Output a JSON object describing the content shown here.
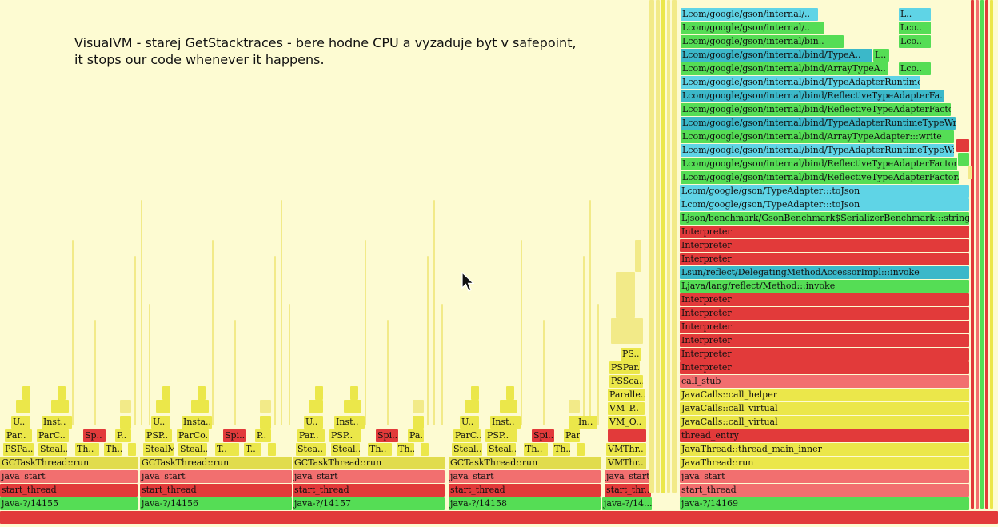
{
  "caption": {
    "line1": "VisualVM - starej GetStacktraces - bere hodne CPU a vyzaduje byt v safepoint,",
    "line2": "it stops our code whenever it happens."
  },
  "colors": {
    "background": "#fdfbd2",
    "yellow": "#ebe74a",
    "red": "#e23a3a",
    "pink": "#f26f6f",
    "green": "#55dd55",
    "cyan": "#5fd4e6",
    "teal": "#3bb8c9"
  },
  "cursor_icon": "arrow-pointer-icon",
  "threads": [
    {
      "label": "java-?/14155"
    },
    {
      "label": "java-?/14156"
    },
    {
      "label": "java-?/14157"
    },
    {
      "label": "java-?/14158"
    },
    {
      "label": "java-?/14..."
    },
    {
      "label": "java-?/14169"
    }
  ],
  "frames": {
    "gc1": [
      "GCTaskThread::run",
      "art_thread",
      "java_start",
      "java-?/14155"
    ],
    "gc_common": {
      "run": "GCTaskThread::run",
      "start": "start_thread",
      "java": "java_start"
    },
    "gc_small_1": [
      "U..",
      "Inst..",
      "Sp..",
      "P..",
      "Par..",
      "ParC..",
      "PSPa..",
      "Steal..",
      "Th.."
    ],
    "gc_small_2": [
      "U..",
      "Insta..",
      "Spi..",
      "P..",
      "PSP..",
      "ParCo..",
      "StealM..",
      "Steal..",
      "T.."
    ],
    "gc_small_3": [
      "U..",
      "Inst..",
      "Spi..",
      "Pa..",
      "Par..",
      "PSP..",
      "Stea..",
      "Steal..",
      "Th.."
    ],
    "gc_small_4": [
      "U..",
      "Inst..",
      "Spi..",
      "Par..",
      "ParC..",
      "PSP..",
      "Steal..",
      "Steal..",
      "Th.."
    ],
    "vm": [
      "VMThr..",
      "VMThr..",
      "VM_O..",
      "VM_P..",
      "Paralle..",
      "PSSca..",
      "PSPar..",
      "PS..",
      "In..",
      "start_thr.."
    ],
    "vm_java": "java_start",
    "main_stack": [
      "java-?/14169",
      "start_thread",
      "java_start",
      "JavaThread::run",
      "JavaThread::thread_main_inner",
      "thread_entry",
      "JavaCalls::call_virtual",
      "JavaCalls::call_virtual",
      "JavaCalls::call_helper",
      "call_stub",
      "Interpreter",
      "Interpreter",
      "Interpreter",
      "Interpreter",
      "Interpreter",
      "Interpreter",
      "Ljava/lang/reflect/Method:::invoke",
      "Lsun/reflect/DelegatingMethodAccessorImpl:::invoke",
      "Interpreter",
      "Interpreter",
      "Interpreter",
      "Ljson/benchmark/GsonBenchmark$SerializerBenchmark:::string",
      "Lcom/google/gson/TypeAdapter:::toJson",
      "Lcom/google/gson/TypeAdapter:::toJson",
      "Lcom/google/gson/internal/bind/ReflectiveTypeAdapterFactor..",
      "Lcom/google/gson/internal/bind/ReflectiveTypeAdapterFactor..",
      "Lcom/google/gson/internal/bind/TypeAdapterRuntimeTypeWra..",
      "Lcom/google/gson/internal/bind/ArrayTypeAdapter:::write",
      "Lcom/google/gson/internal/bind/TypeAdapterRuntimeTypeWr..",
      "Lcom/google/gson/internal/bind/ReflectiveTypeAdapterFacto..",
      "Lcom/google/gson/internal/bind/ReflectiveTypeAdapterFa..",
      "Lcom/google/gson/internal/bind/TypeAdapterRuntimeTy..",
      "Lcom/google/gson/internal/bind/ArrayTypeA..",
      "Lcom/google/gson/internal/bind/TypeA..",
      "Lcom/google/gson/internal/bin..",
      "Lcom/google/gson/internal/..",
      "Lcom/google/gson/internal/.."
    ],
    "top_side": [
      "L..",
      "Lco..",
      "Lco..",
      "Lco..",
      "L.."
    ]
  }
}
